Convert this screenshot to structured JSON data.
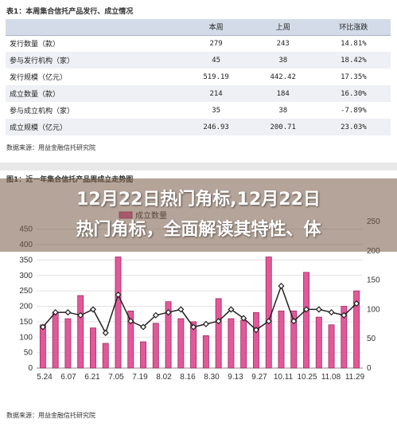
{
  "table_section": {
    "title": "表1：本周集合信托产品发行、成立情况",
    "headers": [
      "",
      "本周",
      "上周",
      "环比涨跌"
    ],
    "rows": [
      [
        "发行数量（款）",
        "279",
        "243",
        "14.81%"
      ],
      [
        "参与发行机构（家）",
        "45",
        "38",
        "18.42%"
      ],
      [
        "发行规模（亿元）",
        "519.19",
        "442.42",
        "17.35%"
      ],
      [
        "成立数量（款）",
        "214",
        "184",
        "16.30%"
      ],
      [
        "参与成立机构（家）",
        "35",
        "38",
        "-7.89%"
      ],
      [
        "成立规模（亿元）",
        "246.93",
        "200.71",
        "23.03%"
      ]
    ],
    "source": "数据来源：用益金融信托研究院"
  },
  "chart_section": {
    "title": "图1：近一年集合信托产品周成立走势图",
    "source": "数据来源：用益金融信托研究院"
  },
  "headline": {
    "line1": "12月22日热门角标,12月22日",
    "line2": "热门角标，全面解读其特性、体"
  },
  "chart_data": {
    "type": "bar",
    "title": "图1：近一年集合信托产品周成立走势图",
    "legend_visible": "成立数量",
    "x_tick_labels": [
      "5.24",
      "6.07",
      "6.21",
      "7.05",
      "7.19",
      "8.02",
      "8.16",
      "8.30",
      "9.13",
      "9.27",
      "10.11",
      "10.25",
      "11.08",
      "11.29"
    ],
    "y_left_ticks": [
      0,
      50,
      100,
      150,
      200,
      250,
      300,
      350,
      400,
      450
    ],
    "y_right_ticks": [
      0,
      50,
      100,
      150,
      200,
      250
    ],
    "ylim_left": [
      0,
      475
    ],
    "ylim_right": [
      0,
      250
    ],
    "series": [
      {
        "kind": "bar",
        "axis": "left",
        "values": [
          140,
          180,
          160,
          235,
          130,
          80,
          360,
          185,
          85,
          145,
          215,
          160,
          150,
          105,
          225,
          160,
          155,
          180,
          360,
          185,
          185,
          310,
          165,
          140,
          200,
          250
        ]
      },
      {
        "kind": "line",
        "axis": "right",
        "values": [
          70,
          95,
          95,
          90,
          100,
          60,
          125,
          80,
          70,
          90,
          95,
          100,
          70,
          75,
          80,
          100,
          85,
          65,
          80,
          140,
          80,
          100,
          100,
          95,
          90,
          110
        ]
      }
    ]
  }
}
